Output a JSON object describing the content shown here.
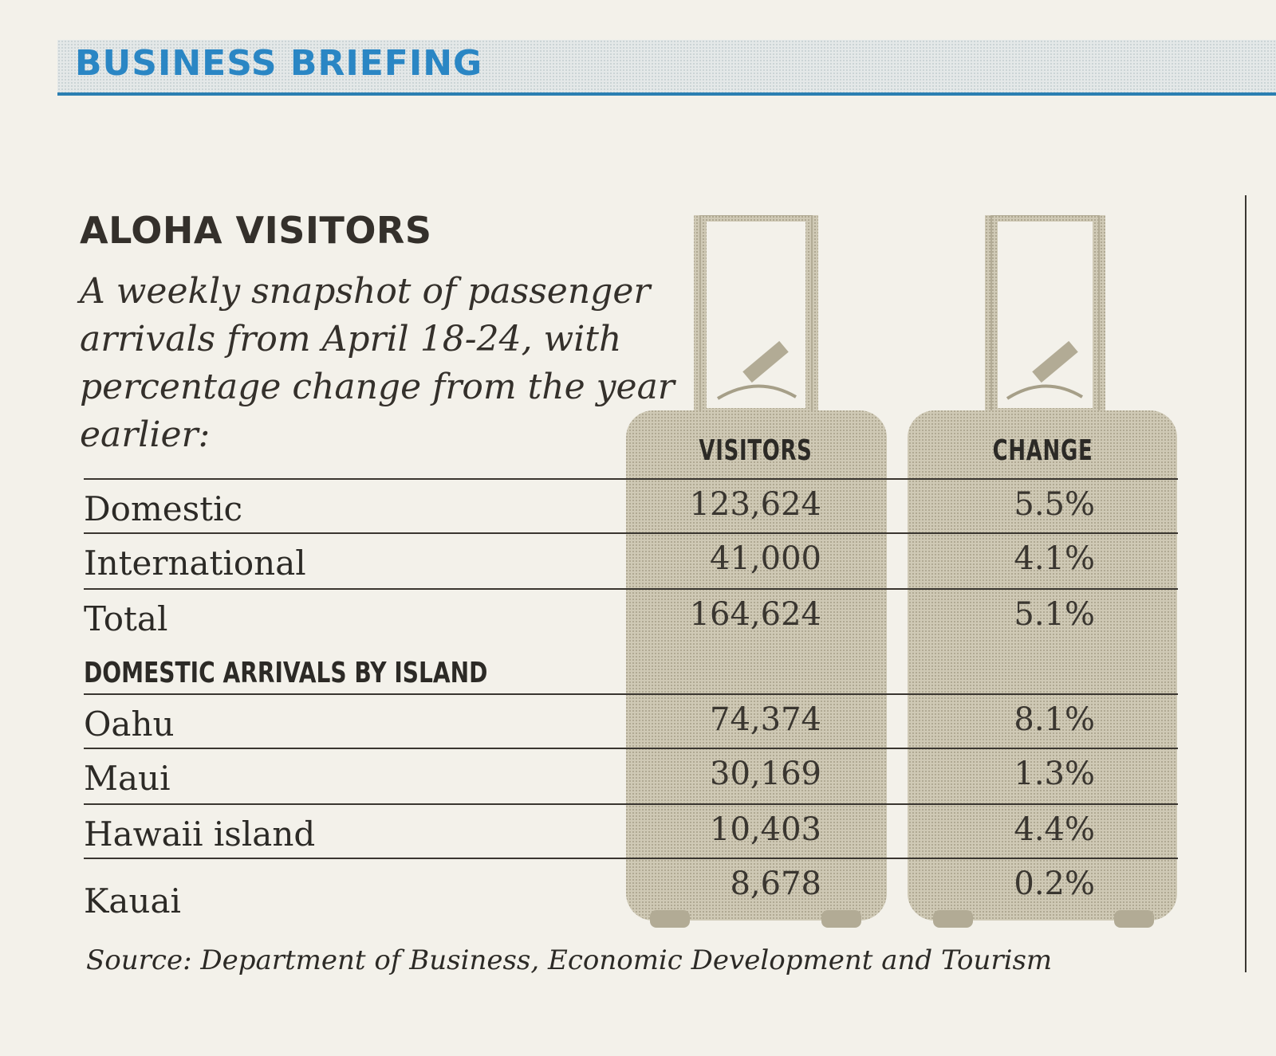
{
  "section": {
    "title": "BUSINESS BRIEFING"
  },
  "article": {
    "headline": "ALOHA VISITORS",
    "deck": "A weekly snapshot of passenger arrivals from April 18-24, with percentage change from the year earlier:"
  },
  "table": {
    "headers": {
      "visitors": "VISITORS",
      "change": "CHANGE"
    },
    "totals": [
      {
        "label": "Domestic",
        "visitors": "123,624",
        "change": "5.5%"
      },
      {
        "label": "International",
        "visitors": "41,000",
        "change": "4.1%"
      },
      {
        "label": "Total",
        "visitors": "164,624",
        "change": "5.1%"
      }
    ],
    "subhead": "DOMESTIC ARRIVALS BY ISLAND",
    "islands": [
      {
        "label": "Oahu",
        "visitors": "74,374",
        "change": "8.1%"
      },
      {
        "label": "Maui",
        "visitors": "30,169",
        "change": "1.3%"
      },
      {
        "label": "Hawaii island",
        "visitors": "10,403",
        "change": "4.4%"
      },
      {
        "label": "Kauai",
        "visitors": "8,678",
        "change": "0.2%"
      }
    ]
  },
  "source": "Source: Department of Business, Economic Development and Tourism",
  "colors": {
    "banner_text": "#2a86c4",
    "banner_rule": "#2b7fb2",
    "luggage_fill": "#c9c2ae"
  }
}
